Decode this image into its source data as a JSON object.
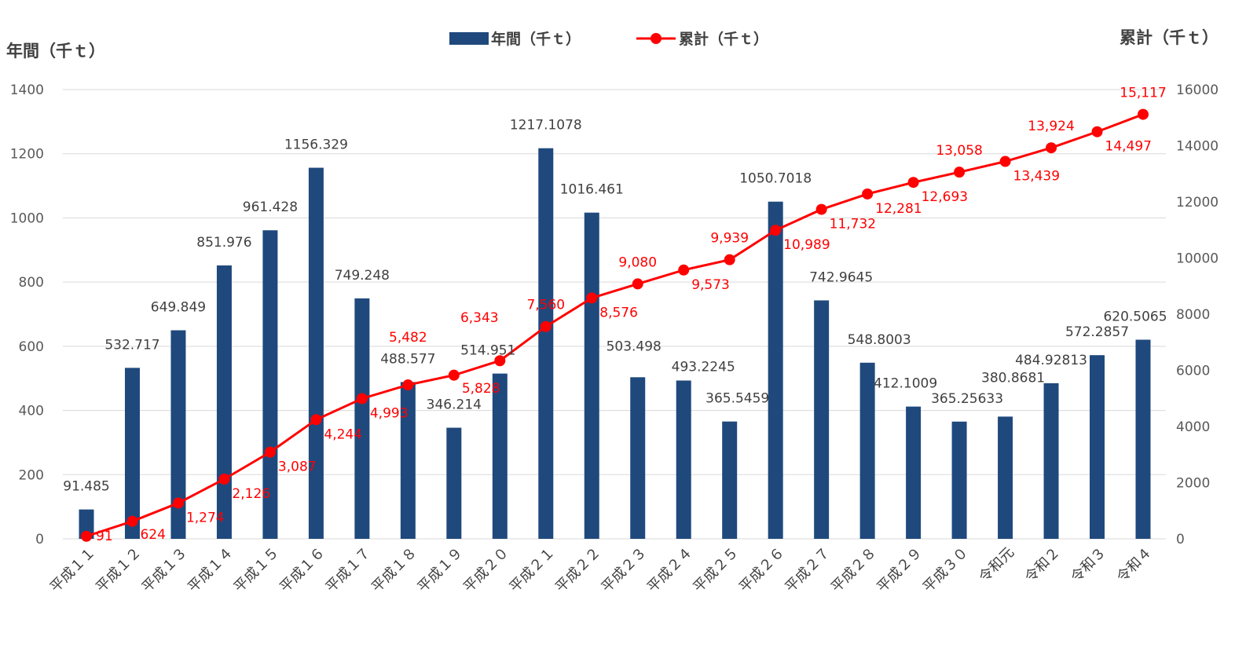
{
  "chart_data": {
    "type": "bar+line",
    "categories": [
      "平成１１",
      "平成１２",
      "平成１３",
      "平成１４",
      "平成１５",
      "平成１６",
      "平成１７",
      "平成１８",
      "平成１９",
      "平成２０",
      "平成２１",
      "平成２２",
      "平成２３",
      "平成２４",
      "平成２５",
      "平成２６",
      "平成２７",
      "平成２８",
      "平成２９",
      "平成３０",
      "令和元",
      "令和２",
      "令和３",
      "令和４"
    ],
    "series": [
      {
        "name": "年間（千ｔ）",
        "type": "bar",
        "axis": "left",
        "color": "#1F497D",
        "values": [
          91.485,
          532.717,
          649.849,
          851.976,
          961.428,
          1156.329,
          749.248,
          488.577,
          346.214,
          514.951,
          1217.1078,
          1016.461,
          503.498,
          493.2245,
          365.5459,
          1050.7018,
          742.9645,
          548.8003,
          412.1009,
          365.25633,
          380.8681,
          484.92813,
          572.2857,
          620.5065
        ],
        "labels": [
          "91.485",
          "532.717",
          "649.849",
          "851.976",
          "961.428",
          "1156.329",
          "749.248",
          "488.577",
          "346.214",
          "514.951",
          "1217.1078",
          "1016.461",
          "503.498",
          "493.2245",
          "365.5459",
          "1050.7018",
          "742.9645",
          "548.8003",
          "412.1009",
          "365.25633",
          "380.8681",
          "484.92813",
          "572.2857",
          "620.5065"
        ]
      },
      {
        "name": "累計（千ｔ）",
        "type": "line",
        "axis": "right",
        "color": "#FF0000",
        "values": [
          91,
          624,
          1274,
          2126,
          3087,
          4244,
          4993,
          5482,
          5828,
          6343,
          7560,
          8576,
          9080,
          9573,
          9939,
          10989,
          11732,
          12281,
          12693,
          13058,
          13439,
          13924,
          14497,
          15117
        ],
        "labels": [
          "91",
          "624",
          "1,274",
          "2,126",
          "3,087",
          "4,244",
          "4,993",
          "5,482",
          "5,828",
          "6,343",
          "7,560",
          "8,576",
          "9,080",
          "9,573",
          "9,939",
          "10,989",
          "11,732",
          "12,281",
          "12,693",
          "13,058",
          "13,439",
          "13,924",
          "14,497",
          "15,117"
        ]
      }
    ],
    "y_left": {
      "label": "年間（千ｔ）",
      "range": [
        0,
        1400
      ],
      "ticks": [
        "0",
        "200",
        "400",
        "600",
        "800",
        "1000",
        "1200",
        "1400"
      ]
    },
    "y_right": {
      "label": "累計（千ｔ）",
      "range": [
        0,
        16000
      ],
      "ticks": [
        "0",
        "2000",
        "4000",
        "6000",
        "8000",
        "10000",
        "12000",
        "14000",
        "16000"
      ]
    },
    "grid": true,
    "legend": "top-center"
  }
}
